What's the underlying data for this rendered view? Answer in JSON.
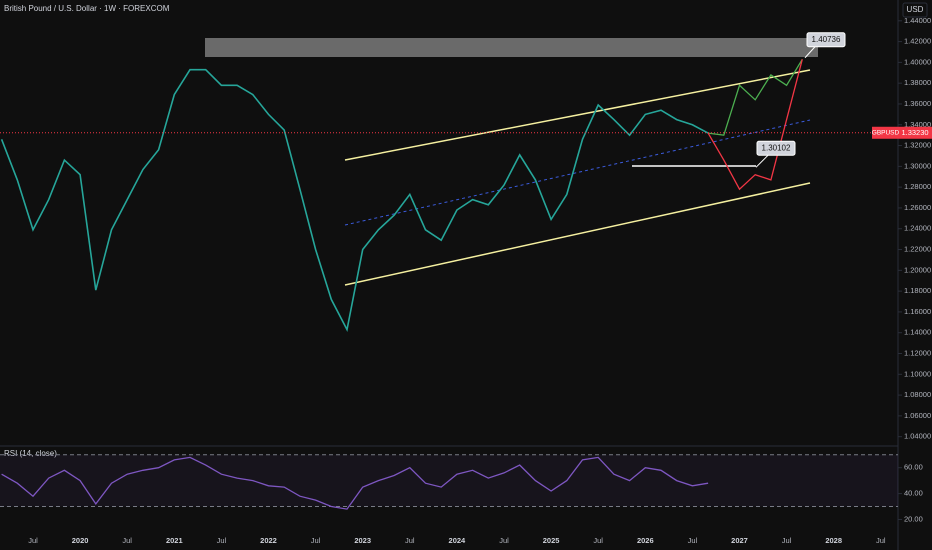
{
  "chart_data": [
    {
      "type": "line",
      "title": "British Pound / U.S. Dollar · 1W · FOREXCOM",
      "currency": "USD",
      "symbol": "GBPUSD",
      "last_price": {
        "value": 1.3323,
        "label": "1.33230"
      },
      "target_price": 1.40736,
      "support_price": 1.30102,
      "categories": [
        null,
        null,
        "Jul",
        null,
        null,
        "2020",
        null,
        null,
        "Jul",
        null,
        null,
        "2021",
        null,
        null,
        "Jul",
        null,
        null,
        "2022",
        null,
        null,
        "Jul",
        null,
        null,
        "2023",
        null,
        null,
        "Jul",
        null,
        null,
        "2024",
        null,
        null,
        "Jul",
        null,
        null,
        "2025",
        null,
        null,
        "Jul",
        null,
        null,
        "2026",
        null,
        null,
        "Jul",
        null,
        null,
        "2027",
        null,
        null,
        "Jul",
        null,
        null,
        "2028",
        null,
        null,
        "Jul",
        null,
        null,
        null
      ],
      "series": [
        {
          "color": "#26a69a",
          "values": [
            1.326,
            1.287,
            1.239,
            1.268,
            1.306,
            1.292,
            1.181,
            1.239,
            1.268,
            1.297,
            1.316,
            1.369,
            1.393,
            1.393,
            1.378,
            1.378,
            1.369,
            1.35,
            1.335,
            1.278,
            1.22,
            1.172,
            1.143,
            1.22,
            1.239,
            1.253,
            1.273,
            1.239,
            1.229,
            1.258,
            1.268,
            1.263,
            1.282,
            1.311,
            1.287,
            1.249,
            1.273,
            1.326,
            1.359,
            1.345,
            1.33,
            1.35,
            1.354,
            1.345,
            1.34,
            1.332,
            null,
            null,
            null,
            null,
            null,
            null,
            null,
            null,
            null,
            null,
            null,
            null,
            null,
            null
          ]
        },
        {
          "color": "#4caf50",
          "values": [
            null,
            null,
            null,
            null,
            null,
            null,
            null,
            null,
            null,
            null,
            null,
            null,
            null,
            null,
            null,
            null,
            null,
            null,
            null,
            null,
            null,
            null,
            null,
            null,
            null,
            null,
            null,
            null,
            null,
            null,
            null,
            null,
            null,
            null,
            null,
            null,
            null,
            null,
            null,
            null,
            null,
            null,
            null,
            null,
            null,
            1.332,
            1.33,
            1.378,
            1.364,
            1.388,
            1.378,
            1.403,
            null,
            null,
            null,
            null,
            null,
            null,
            null,
            null
          ]
        },
        {
          "color": "#f23645",
          "values": [
            null,
            null,
            null,
            null,
            null,
            null,
            null,
            null,
            null,
            null,
            null,
            null,
            null,
            null,
            null,
            null,
            null,
            null,
            null,
            null,
            null,
            null,
            null,
            null,
            null,
            null,
            null,
            null,
            null,
            null,
            null,
            null,
            null,
            null,
            null,
            null,
            null,
            null,
            null,
            null,
            null,
            null,
            null,
            null,
            null,
            1.332,
            1.306,
            1.278,
            1.292,
            1.287,
            1.345,
            1.403,
            null,
            null,
            null,
            null,
            null,
            null,
            null,
            null
          ]
        }
      ],
      "ylim": [
        1.032,
        1.46
      ],
      "yticks": [
        {
          "value": 1.44,
          "label": "1.44000"
        },
        {
          "value": 1.42,
          "label": "1.42000"
        },
        {
          "value": 1.4,
          "label": "1.40000"
        },
        {
          "value": 1.38,
          "label": "1.38000"
        },
        {
          "value": 1.36,
          "label": "1.36000"
        },
        {
          "value": 1.34,
          "label": "1.34000"
        },
        {
          "value": 1.32,
          "label": "1.32000"
        },
        {
          "value": 1.3,
          "label": "1.30000"
        },
        {
          "value": 1.28,
          "label": "1.28000"
        },
        {
          "value": 1.26,
          "label": "1.26000"
        },
        {
          "value": 1.24,
          "label": "1.24000"
        },
        {
          "value": 1.22,
          "label": "1.22000"
        },
        {
          "value": 1.2,
          "label": "1.20000"
        },
        {
          "value": 1.18,
          "label": "1.18000"
        },
        {
          "value": 1.16,
          "label": "1.16000"
        },
        {
          "value": 1.14,
          "label": "1.14000"
        },
        {
          "value": 1.12,
          "label": "1.12000"
        },
        {
          "value": 1.1,
          "label": "1.10000"
        },
        {
          "value": 1.08,
          "label": "1.08000"
        },
        {
          "value": 1.06,
          "label": "1.06000"
        },
        {
          "value": 1.04,
          "label": "1.04000"
        }
      ]
    },
    {
      "type": "line",
      "title": "RSI (14, close)",
      "series": [
        {
          "color": "#7e57c2",
          "values": [
            55,
            48,
            38,
            52,
            58,
            50,
            32,
            48,
            55,
            58,
            60,
            66,
            68,
            62,
            55,
            52,
            50,
            46,
            45,
            38,
            35,
            30,
            28,
            45,
            50,
            54,
            60,
            48,
            45,
            55,
            58,
            52,
            56,
            62,
            50,
            42,
            50,
            66,
            68,
            55,
            50,
            60,
            58,
            50,
            46,
            48
          ]
        }
      ],
      "bands": [
        70,
        30
      ],
      "ylim": [
        8,
        76
      ],
      "yticks": [
        {
          "value": 60,
          "label": "60.00"
        },
        {
          "value": 40,
          "label": "40.00"
        },
        {
          "value": 20,
          "label": "20.00"
        }
      ]
    }
  ]
}
